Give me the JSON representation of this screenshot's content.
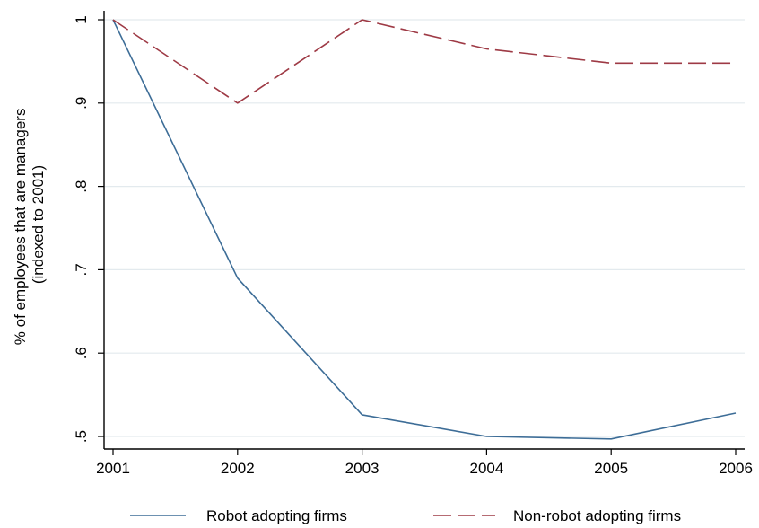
{
  "chart_data": {
    "type": "line",
    "title": "",
    "xlabel": "",
    "ylabel_lines": [
      "% of employees that are managers",
      "(indexed to 2001)"
    ],
    "x": [
      2001,
      2002,
      2003,
      2004,
      2005,
      2006
    ],
    "x_tick_labels": [
      "2001",
      "2002",
      "2003",
      "2004",
      "2005",
      "2006"
    ],
    "y_ticks": [
      0.5,
      0.6,
      0.7,
      0.8,
      0.9,
      1.0
    ],
    "y_tick_labels": [
      ".5",
      ".6",
      ".7",
      ".8",
      ".9",
      "1"
    ],
    "xlim": [
      2001,
      2006
    ],
    "ylim": [
      0.5,
      1.0
    ],
    "grid": true,
    "legend_position": "bottom",
    "series": [
      {
        "name": "Robot adopting firms",
        "color": "#3d6d97",
        "dash": "solid",
        "values": [
          1.0,
          0.69,
          0.526,
          0.5,
          0.497,
          0.528
        ]
      },
      {
        "name": "Non-robot adopting firms",
        "color": "#9e3a45",
        "dash": "dashed",
        "values": [
          1.0,
          0.9,
          1.0,
          0.965,
          0.948,
          0.948
        ]
      }
    ]
  }
}
